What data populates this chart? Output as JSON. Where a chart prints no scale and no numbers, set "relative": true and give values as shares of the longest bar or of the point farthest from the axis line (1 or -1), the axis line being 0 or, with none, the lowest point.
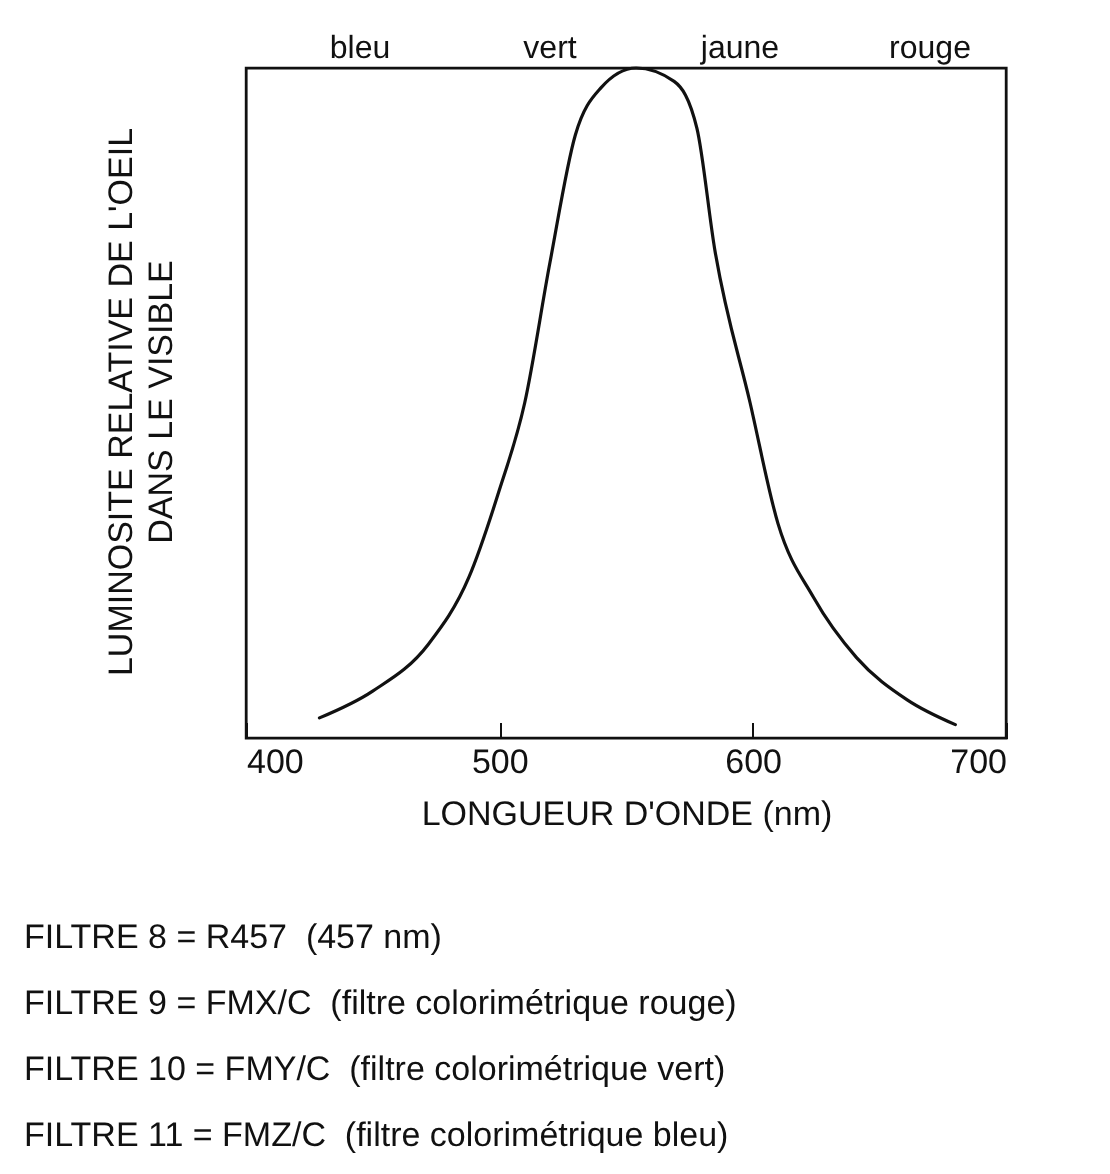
{
  "chart_data": {
    "type": "line",
    "relative": true,
    "xlabel": "LONGUEUR D'ONDE (nm)",
    "ylabel": "LUMINOSITE RELATIVE DE L'OEIL\nDANS LE VISIBLE",
    "xlim": [
      400,
      700
    ],
    "xticks": [
      400,
      500,
      600,
      700
    ],
    "grid": false,
    "marker": "none",
    "line_style": "solid",
    "series": [
      {
        "color": "#111111",
        "x": [
          429,
          450,
          472,
          488,
          500,
          510,
          520,
          530,
          540,
          554,
          569,
          578,
          585,
          599,
          610,
          624,
          641,
          661,
          680
        ],
        "values": [
          0.03,
          0.07,
          0.14,
          0.24,
          0.37,
          0.5,
          0.71,
          0.9,
          0.97,
          1,
          0.98,
          0.91,
          0.73,
          0.5,
          0.32,
          0.21,
          0.12,
          0.057,
          0.02
        ]
      }
    ],
    "annotations": [
      "bleu",
      "vert",
      "jaune",
      "rouge",
      "FILTRE 8 = R457  (457 nm)",
      "FILTRE 9 = FMX/C  (filtre colorimétrique rouge)",
      "FILTRE 10 = FMY/C  (filtre colorimétrique vert)",
      "FILTRE 11 = FMZ/C  (filtre colorimétrique bleu)"
    ]
  }
}
